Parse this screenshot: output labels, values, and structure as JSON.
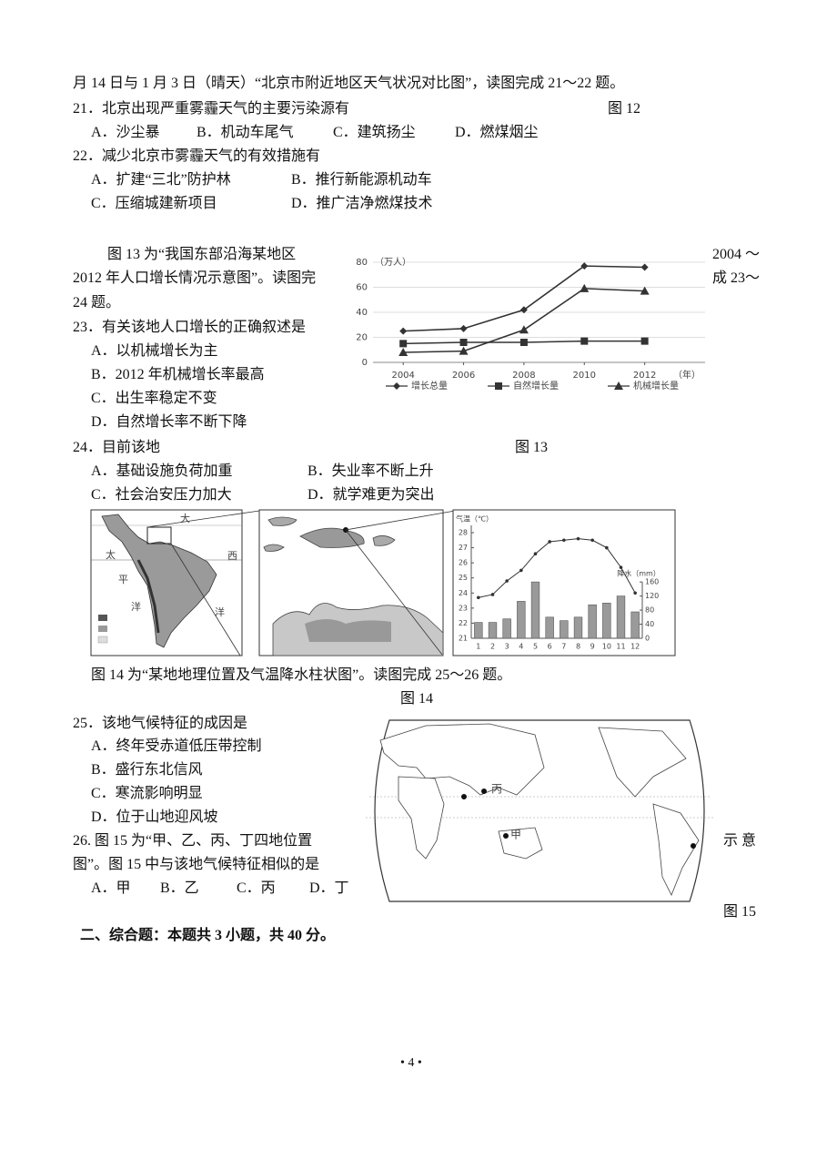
{
  "intro": "月 14 日与 1 月 3 日（晴天）“北京市附近地区天气状况对比图”，读图完成 21～22 题。",
  "fig12_label": "图 12",
  "q21": {
    "stem": "21．北京出现严重雾霾天气的主要污染源有",
    "options": [
      "A．沙尘暴",
      "B．机动车尾气",
      "C．建筑扬尘",
      "D．燃煤烟尘"
    ]
  },
  "q22": {
    "stem": "22．减少北京市雾霾天气的有效措施有",
    "options": [
      "A．扩建“三北”防护林",
      "B．推行新能源机动车",
      "C．压缩城建新项目",
      "D．推广洁净燃煤技术"
    ]
  },
  "fig13_text": [
    "图 13 为“我国东部沿海某地区",
    "2012 年人口增长情况示意图”。读图完",
    "24 题。"
  ],
  "fig13_text_right": [
    "2004 ～",
    "成 23～"
  ],
  "q23": {
    "stem": "23．有关该地人口增长的正确叙述是",
    "options": [
      "A．以机械增长为主",
      "B．2012 年机械增长率最高",
      "C．出生率稳定不变",
      "D．自然增长率不断下降"
    ]
  },
  "fig13_label": "图 13",
  "q24": {
    "stem": "24．目前该地",
    "options": [
      "A．基础设施负荷加重",
      "B．失业率不断上升",
      "C．社会治安压力加大",
      "D．就学难更为突出"
    ]
  },
  "fig14_map_labels": [
    "大",
    "太",
    "西",
    "平",
    "洋",
    "洋"
  ],
  "fig14_caption": "图 14 为“某地地理位置及气温降水柱状图”。读图完成 25～26 题。",
  "fig14_label": "图 14",
  "q25": {
    "stem": "25．该地气候特征的成因是",
    "options": [
      "A．终年受赤道低压带控制",
      "B．盛行东北信风",
      "C．寒流影响明显",
      "D．位于山地迎风坡"
    ]
  },
  "q26": {
    "stem": [
      "26. 图 15 为“甲、乙、丙、丁四地位置",
      "图”。图 15 中与该地气候特征相似的是"
    ],
    "stem_right": "示 意",
    "options": [
      "A．甲",
      "B．乙",
      "C．丙",
      "D．丁"
    ]
  },
  "fig15_map_labels": [
    "丙",
    "甲"
  ],
  "fig15_label": "图 15",
  "section2": "二、综合题：本题共 3 小题，共 40 分。",
  "page_number": "• 4 •",
  "chart_data": [
    {
      "type": "line",
      "y_label": "（万人）",
      "x_label": "（年）",
      "x": [
        2004,
        2006,
        2008,
        2010,
        2012
      ],
      "xlim": [
        2003,
        2014
      ],
      "xticks": [
        2004,
        2006,
        2008,
        2010,
        2012
      ],
      "ylim": [
        0,
        80
      ],
      "yticks": [
        0,
        20,
        40,
        60,
        80
      ],
      "grid": true,
      "series": [
        {
          "name": "增长总量",
          "color": "#333333",
          "marker": "diamond",
          "values": [
            25,
            27,
            42,
            77,
            76
          ]
        },
        {
          "name": "自然增长量",
          "color": "#333333",
          "marker": "square",
          "values": [
            15,
            16,
            16,
            17,
            17
          ]
        },
        {
          "name": "机械增长量",
          "color": "#333333",
          "marker": "triangle",
          "values": [
            8,
            9,
            26,
            59,
            57
          ]
        }
      ]
    },
    {
      "type": "climate",
      "y_label": "气温（℃）",
      "y2_label": "降水（mm）",
      "categories": [
        1,
        2,
        3,
        4,
        5,
        6,
        7,
        8,
        9,
        10,
        11,
        12
      ],
      "ylim": [
        21,
        28
      ],
      "yticks": [
        21,
        22,
        23,
        24,
        25,
        26,
        27,
        28
      ],
      "y2lim": [
        0,
        300
      ],
      "y2ticks": [
        0,
        40,
        80,
        120,
        160
      ],
      "series": [
        {
          "name": "气温",
          "color": "#333333",
          "values": [
            23.7,
            23.9,
            24.8,
            25.5,
            26.6,
            27.4,
            27.5,
            27.6,
            27.5,
            27.0,
            25.7,
            24.0
          ]
        },
        {
          "name": "降水",
          "color": "#9a9a9a",
          "axis": "y2",
          "values": [
            45,
            45,
            55,
            105,
            160,
            60,
            50,
            60,
            95,
            100,
            120,
            75
          ]
        }
      ]
    }
  ]
}
